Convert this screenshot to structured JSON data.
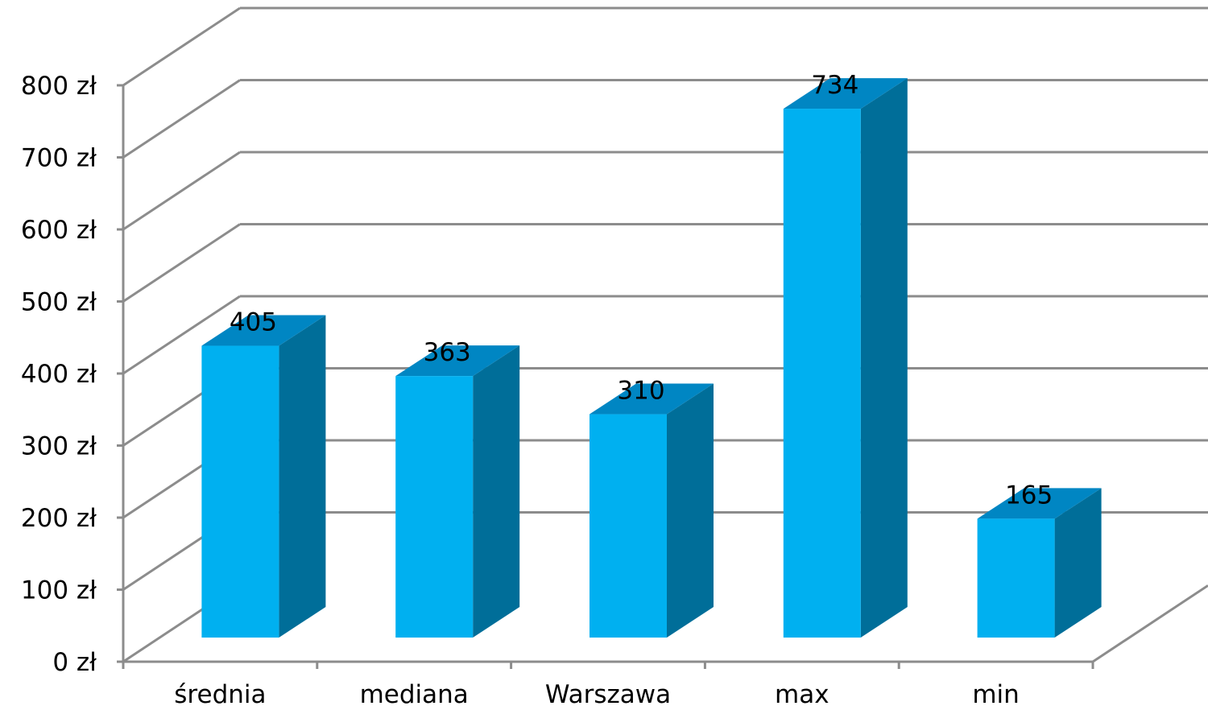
{
  "chart_data": {
    "type": "bar",
    "three_d": true,
    "categories": [
      "średnia",
      "mediana",
      "Warszawa",
      "max",
      "min"
    ],
    "values": [
      405,
      363,
      310,
      734,
      165
    ],
    "data_labels": [
      "405",
      "363",
      "310",
      "734",
      "165"
    ],
    "y_ticks": [
      "0 zł",
      "100 zł",
      "200 zł",
      "300 zł",
      "400 zł",
      "500 zł",
      "600 zł",
      "700 zł",
      "800 zł"
    ],
    "ylim": [
      0,
      800
    ],
    "grid": true,
    "legend": "none",
    "colors": {
      "bar_front": "#00B0F0",
      "bar_top": "#0086C3",
      "bar_side": "#006E99",
      "gridline": "#8C8C8C"
    }
  }
}
